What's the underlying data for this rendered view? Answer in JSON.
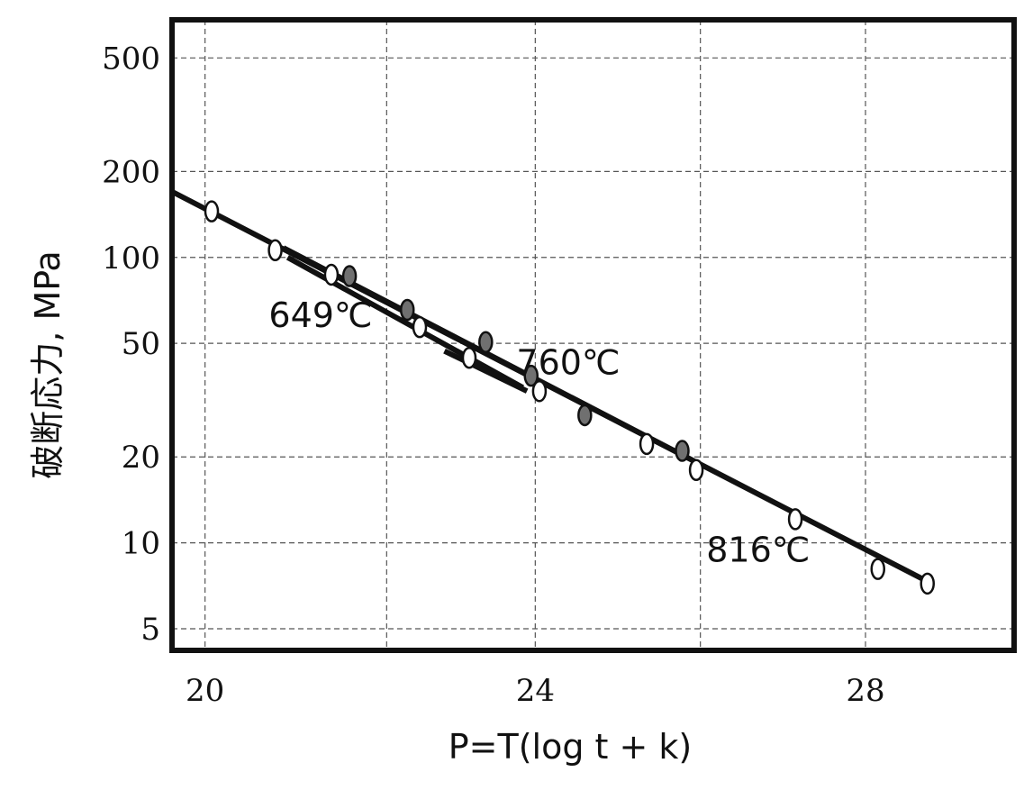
{
  "chart_data": {
    "type": "scatter",
    "title": "",
    "xlabel": "P=T(log t + k)",
    "ylabel": "破断応力, MPa",
    "xlim": [
      19.6,
      29.8
    ],
    "ylim": [
      4.2,
      680
    ],
    "yscale": "log",
    "x_ticks": [
      20,
      24,
      28
    ],
    "x_tick_labels": [
      "20",
      "24",
      "28"
    ],
    "x_grid": [
      20,
      22.2,
      24,
      26,
      28
    ],
    "y_ticks": [
      5,
      10,
      20,
      50,
      100,
      200,
      500
    ],
    "y_tick_labels": [
      "5",
      "10",
      "20",
      "50",
      "100",
      "200",
      "500"
    ],
    "grid": true,
    "fit_lines": [
      {
        "x": [
          19.6,
          28.8
        ],
        "y": [
          170,
          7.2
        ]
      },
      {
        "x": [
          20.95,
          25.9
        ],
        "y": [
          108,
          19.5
        ]
      },
      {
        "x": [
          21.0,
          23.85
        ],
        "y": [
          100,
          35
        ]
      },
      {
        "x": [
          22.9,
          23.9
        ],
        "y": [
          47,
          34
        ]
      }
    ],
    "series": [
      {
        "marker": "open",
        "x": [
          20.08,
          20.85,
          21.53,
          22.6,
          23.2,
          24.05,
          25.35,
          25.95,
          27.15,
          28.15,
          28.75
        ],
        "y": [
          145,
          106,
          87,
          57,
          44.5,
          34,
          22.2,
          18,
          12.1,
          8.1,
          7.2
        ]
      },
      {
        "marker": "filled",
        "x": [
          21.75,
          22.45,
          23.4,
          23.95,
          24.6,
          25.78
        ],
        "y": [
          86,
          65.5,
          50.5,
          38.5,
          28,
          21
        ]
      }
    ],
    "annotations": [
      {
        "text": "649℃",
        "x": 21.4,
        "y": 57
      },
      {
        "text": "760℃",
        "x": 24.4,
        "y": 39
      },
      {
        "text": "816℃",
        "x": 26.7,
        "y": 8.6
      }
    ]
  }
}
